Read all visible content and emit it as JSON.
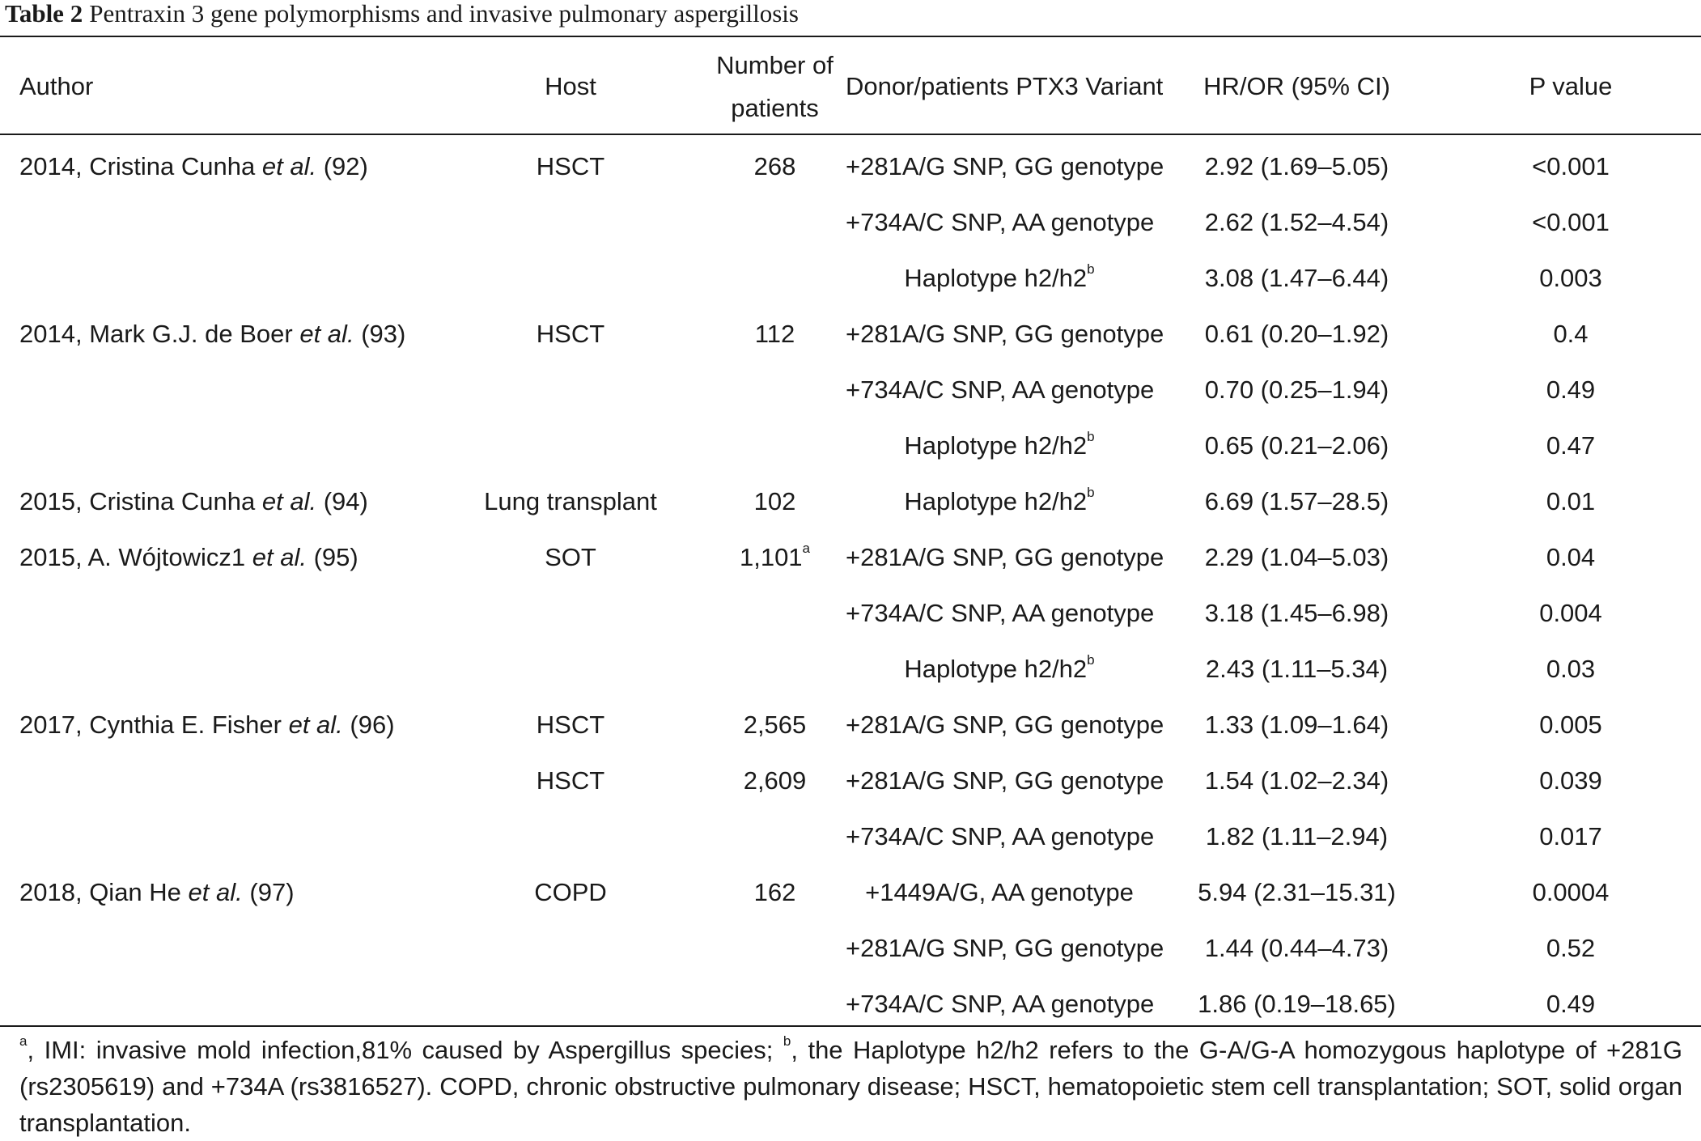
{
  "caption": {
    "label": "Table 2",
    "title": "Pentraxin 3 gene polymorphisms and invasive pulmonary aspergillosis"
  },
  "columns": {
    "author": "Author",
    "host": "Host",
    "patients_line1": "Number of",
    "patients_line2": "patients",
    "variant": "Donor/patients PTX3 Variant",
    "ratio": "HR/OR (95% CI)",
    "pvalue": "P value"
  },
  "rows": [
    {
      "author": "2014, Cristina Cunha",
      "etal": "et al.",
      "ref": "(92)",
      "host": "HSCT",
      "patients": "268",
      "patients_sup": "",
      "variant": "+281A/G SNP, GG genotype",
      "variant_sup": "",
      "ratio": "2.92 (1.69–5.05)",
      "p": "<0.001"
    },
    {
      "author": "",
      "etal": "",
      "ref": "",
      "host": "",
      "patients": "",
      "patients_sup": "",
      "variant": "+734A/C SNP, AA genotype",
      "variant_sup": "",
      "ratio": "2.62 (1.52–4.54)",
      "p": "<0.001"
    },
    {
      "author": "",
      "etal": "",
      "ref": "",
      "host": "",
      "patients": "",
      "patients_sup": "",
      "variant": "Haplotype h2/h2",
      "variant_sup": "b",
      "ratio": "3.08 (1.47–6.44)",
      "p": "0.003"
    },
    {
      "author": "2014, Mark G.J. de Boer",
      "etal": "et al.",
      "ref": "(93)",
      "host": "HSCT",
      "patients": "112",
      "patients_sup": "",
      "variant": "+281A/G SNP, GG genotype",
      "variant_sup": "",
      "ratio": "0.61 (0.20–1.92)",
      "p": "0.4"
    },
    {
      "author": "",
      "etal": "",
      "ref": "",
      "host": "",
      "patients": "",
      "patients_sup": "",
      "variant": "+734A/C SNP, AA genotype",
      "variant_sup": "",
      "ratio": "0.70 (0.25–1.94)",
      "p": "0.49"
    },
    {
      "author": "",
      "etal": "",
      "ref": "",
      "host": "",
      "patients": "",
      "patients_sup": "",
      "variant": "Haplotype h2/h2",
      "variant_sup": "b",
      "ratio": "0.65 (0.21–2.06)",
      "p": "0.47"
    },
    {
      "author": "2015, Cristina Cunha",
      "etal": "et al.",
      "ref": "(94)",
      "host": "Lung transplant",
      "patients": "102",
      "patients_sup": "",
      "variant": "Haplotype h2/h2",
      "variant_sup": "b",
      "ratio": "6.69 (1.57–28.5)",
      "p": "0.01"
    },
    {
      "author": "2015, A. Wójtowicz1",
      "etal": "et al.",
      "ref": "(95)",
      "host": "SOT",
      "patients": "1,101",
      "patients_sup": "a",
      "variant": "+281A/G SNP, GG genotype",
      "variant_sup": "",
      "ratio": "2.29 (1.04–5.03)",
      "p": "0.04"
    },
    {
      "author": "",
      "etal": "",
      "ref": "",
      "host": "",
      "patients": "",
      "patients_sup": "",
      "variant": "+734A/C SNP, AA genotype",
      "variant_sup": "",
      "ratio": "3.18 (1.45–6.98)",
      "p": "0.004"
    },
    {
      "author": "",
      "etal": "",
      "ref": "",
      "host": "",
      "patients": "",
      "patients_sup": "",
      "variant": "Haplotype h2/h2",
      "variant_sup": "b",
      "ratio": "2.43 (1.11–5.34)",
      "p": "0.03"
    },
    {
      "author": "2017, Cynthia E. Fisher",
      "etal": "et al.",
      "ref": "(96)",
      "host": "HSCT",
      "patients": "2,565",
      "patients_sup": "",
      "variant": "+281A/G SNP, GG genotype",
      "variant_sup": "",
      "ratio": "1.33 (1.09–1.64)",
      "p": "0.005"
    },
    {
      "author": "",
      "etal": "",
      "ref": "",
      "host": "HSCT",
      "patients": "2,609",
      "patients_sup": "",
      "variant": "+281A/G SNP, GG genotype",
      "variant_sup": "",
      "ratio": "1.54 (1.02–2.34)",
      "p": "0.039"
    },
    {
      "author": "",
      "etal": "",
      "ref": "",
      "host": "",
      "patients": "",
      "patients_sup": "",
      "variant": "+734A/C SNP, AA genotype",
      "variant_sup": "",
      "ratio": "1.82 (1.11–2.94)",
      "p": "0.017"
    },
    {
      "author": "2018, Qian He",
      "etal": "et al.",
      "ref": "(97)",
      "host": "COPD",
      "patients": "162",
      "patients_sup": "",
      "variant": "+1449A/G, AA genotype",
      "variant_sup": "",
      "ratio": "5.94 (2.31–15.31)",
      "p": "0.0004"
    },
    {
      "author": "",
      "etal": "",
      "ref": "",
      "host": "",
      "patients": "",
      "patients_sup": "",
      "variant": "+281A/G SNP, GG genotype",
      "variant_sup": "",
      "ratio": "1.44 (0.44–4.73)",
      "p": "0.52"
    },
    {
      "author": "",
      "etal": "",
      "ref": "",
      "host": "",
      "patients": "",
      "patients_sup": "",
      "variant": "+734A/C SNP, AA genotype",
      "variant_sup": "",
      "ratio": "1.86 (0.19–18.65)",
      "p": "0.49"
    }
  ],
  "footnote": {
    "sup_a": "a",
    "text_a": ", IMI: invasive mold infection,81% caused by Aspergillus species; ",
    "sup_b": "b",
    "text_b": ", the Haplotype h2/h2 refers to the G-A/G-A homozygous haplotype of +281G (rs2305619) and +734A (rs3816527). COPD, chronic obstructive pulmonary disease; HSCT, hematopoietic stem cell transplantation; SOT, solid organ transplantation."
  }
}
